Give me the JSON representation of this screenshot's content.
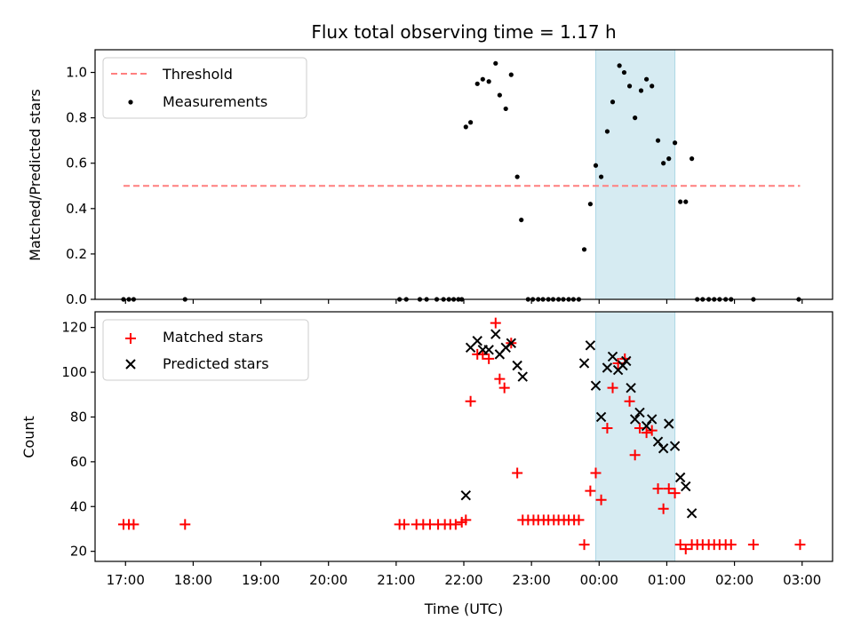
{
  "chart_data": [
    {
      "type": "scatter",
      "title": "Flux total observing time = 1.17 h",
      "xlabel": "",
      "ylabel": "Matched/Predicted stars",
      "ylim": [
        0,
        1.1
      ],
      "yticks": [
        0.0,
        0.2,
        0.4,
        0.6,
        0.8,
        1.0
      ],
      "ytick_labels": [
        "0.0",
        "0.2",
        "0.4",
        "0.6",
        "0.8",
        "1.0"
      ],
      "xlim_hours": [
        16.55,
        27.45
      ],
      "shaded_span_hours": [
        23.95,
        25.12
      ],
      "legend": [
        {
          "label": "Threshold",
          "style": "dashed-line",
          "color": "#ff7f7f"
        },
        {
          "label": "Measurements",
          "style": "dot",
          "color": "#000000"
        }
      ],
      "threshold": {
        "y": 0.5,
        "x": [
          16.97,
          26.97
        ]
      },
      "series": [
        {
          "name": "Measurements",
          "points": [
            [
              16.97,
              0
            ],
            [
              17.05,
              0
            ],
            [
              17.12,
              0
            ],
            [
              17.88,
              0
            ],
            [
              21.05,
              0
            ],
            [
              21.15,
              0
            ],
            [
              21.35,
              0
            ],
            [
              21.45,
              0
            ],
            [
              21.6,
              0
            ],
            [
              21.7,
              0
            ],
            [
              21.78,
              0
            ],
            [
              21.85,
              0
            ],
            [
              21.92,
              0
            ],
            [
              21.97,
              0
            ],
            [
              22.03,
              0.76
            ],
            [
              22.1,
              0.78
            ],
            [
              22.2,
              0.95
            ],
            [
              22.28,
              0.97
            ],
            [
              22.37,
              0.96
            ],
            [
              22.47,
              1.04
            ],
            [
              22.53,
              0.9
            ],
            [
              22.62,
              0.84
            ],
            [
              22.7,
              0.99
            ],
            [
              22.79,
              0.54
            ],
            [
              22.85,
              0.35
            ],
            [
              22.95,
              0
            ],
            [
              23.02,
              0
            ],
            [
              23.1,
              0
            ],
            [
              23.17,
              0
            ],
            [
              23.25,
              0
            ],
            [
              23.32,
              0
            ],
            [
              23.4,
              0
            ],
            [
              23.47,
              0
            ],
            [
              23.55,
              0
            ],
            [
              23.62,
              0
            ],
            [
              23.7,
              0
            ],
            [
              23.78,
              0.22
            ],
            [
              23.87,
              0.42
            ],
            [
              23.95,
              0.59
            ],
            [
              24.03,
              0.54
            ],
            [
              24.12,
              0.74
            ],
            [
              24.2,
              0.87
            ],
            [
              24.3,
              1.03
            ],
            [
              24.37,
              1.0
            ],
            [
              24.45,
              0.94
            ],
            [
              24.53,
              0.8
            ],
            [
              24.62,
              0.92
            ],
            [
              24.7,
              0.97
            ],
            [
              24.78,
              0.94
            ],
            [
              24.87,
              0.7
            ],
            [
              24.95,
              0.6
            ],
            [
              25.03,
              0.62
            ],
            [
              25.12,
              0.69
            ],
            [
              25.2,
              0.43
            ],
            [
              25.28,
              0.43
            ],
            [
              25.37,
              0.62
            ],
            [
              25.45,
              0
            ],
            [
              25.53,
              0
            ],
            [
              25.62,
              0
            ],
            [
              25.7,
              0
            ],
            [
              25.78,
              0
            ],
            [
              25.87,
              0
            ],
            [
              25.95,
              0
            ],
            [
              26.28,
              0
            ],
            [
              26.95,
              0
            ]
          ]
        }
      ]
    },
    {
      "type": "scatter",
      "title": "",
      "xlabel": "Time (UTC)",
      "ylabel": "Count",
      "ylim": [
        15.5,
        127
      ],
      "yticks": [
        20,
        40,
        60,
        80,
        100,
        120
      ],
      "ytick_labels": [
        "20",
        "40",
        "60",
        "80",
        "100",
        "120"
      ],
      "xlim_hours": [
        16.55,
        27.45
      ],
      "xticks_hours": [
        17,
        18,
        19,
        20,
        21,
        22,
        23,
        24,
        25,
        26,
        27
      ],
      "xtick_labels": [
        "17:00",
        "18:00",
        "19:00",
        "20:00",
        "21:00",
        "22:00",
        "23:00",
        "00:00",
        "01:00",
        "02:00",
        "03:00"
      ],
      "shaded_span_hours": [
        23.95,
        25.12
      ],
      "legend": [
        {
          "label": "Matched stars",
          "style": "plus",
          "color": "#ff0000"
        },
        {
          "label": "Predicted stars",
          "style": "x",
          "color": "#000000"
        }
      ],
      "series": [
        {
          "name": "Matched stars",
          "color": "#ff0000",
          "marker": "plus",
          "points": [
            [
              16.97,
              32
            ],
            [
              17.05,
              32
            ],
            [
              17.12,
              32
            ],
            [
              17.88,
              32
            ],
            [
              21.05,
              32
            ],
            [
              21.12,
              32
            ],
            [
              21.3,
              32
            ],
            [
              21.4,
              32
            ],
            [
              21.5,
              32
            ],
            [
              21.62,
              32
            ],
            [
              21.72,
              32
            ],
            [
              21.8,
              32
            ],
            [
              21.88,
              32
            ],
            [
              21.97,
              33
            ],
            [
              22.03,
              34
            ],
            [
              22.1,
              87
            ],
            [
              22.2,
              108
            ],
            [
              22.28,
              108
            ],
            [
              22.37,
              106
            ],
            [
              22.47,
              122
            ],
            [
              22.53,
              97
            ],
            [
              22.6,
              93
            ],
            [
              22.7,
              113
            ],
            [
              22.79,
              55
            ],
            [
              22.87,
              34
            ],
            [
              22.95,
              34
            ],
            [
              23.03,
              34
            ],
            [
              23.1,
              34
            ],
            [
              23.18,
              34
            ],
            [
              23.25,
              34
            ],
            [
              23.33,
              34
            ],
            [
              23.4,
              34
            ],
            [
              23.48,
              34
            ],
            [
              23.55,
              34
            ],
            [
              23.63,
              34
            ],
            [
              23.7,
              34
            ],
            [
              23.78,
              23
            ],
            [
              23.87,
              47
            ],
            [
              23.95,
              55
            ],
            [
              24.03,
              43
            ],
            [
              24.12,
              75
            ],
            [
              24.2,
              93
            ],
            [
              24.28,
              104
            ],
            [
              24.38,
              106
            ],
            [
              24.45,
              87
            ],
            [
              24.53,
              63
            ],
            [
              24.6,
              75
            ],
            [
              24.7,
              73
            ],
            [
              24.78,
              74
            ],
            [
              24.87,
              48
            ],
            [
              24.95,
              39
            ],
            [
              25.03,
              48
            ],
            [
              25.12,
              46
            ],
            [
              25.2,
              23
            ],
            [
              25.28,
              21
            ],
            [
              25.37,
              23
            ],
            [
              25.45,
              23
            ],
            [
              25.53,
              23
            ],
            [
              25.62,
              23
            ],
            [
              25.7,
              23
            ],
            [
              25.78,
              23
            ],
            [
              25.87,
              23
            ],
            [
              25.95,
              23
            ],
            [
              26.28,
              23
            ],
            [
              26.97,
              23
            ]
          ]
        },
        {
          "name": "Predicted stars",
          "color": "#000000",
          "marker": "x",
          "points": [
            [
              22.03,
              45
            ],
            [
              22.1,
              111
            ],
            [
              22.2,
              114
            ],
            [
              22.28,
              110
            ],
            [
              22.37,
              110
            ],
            [
              22.47,
              117
            ],
            [
              22.53,
              108
            ],
            [
              22.62,
              111
            ],
            [
              22.7,
              113
            ],
            [
              22.79,
              103
            ],
            [
              22.87,
              98
            ],
            [
              23.78,
              104
            ],
            [
              23.87,
              112
            ],
            [
              23.95,
              94
            ],
            [
              24.03,
              80
            ],
            [
              24.12,
              102
            ],
            [
              24.2,
              107
            ],
            [
              24.28,
              101
            ],
            [
              24.35,
              103
            ],
            [
              24.4,
              105
            ],
            [
              24.47,
              93
            ],
            [
              24.53,
              79
            ],
            [
              24.6,
              82
            ],
            [
              24.7,
              76
            ],
            [
              24.78,
              79
            ],
            [
              24.87,
              69
            ],
            [
              24.95,
              66
            ],
            [
              25.03,
              77
            ],
            [
              25.12,
              67
            ],
            [
              25.2,
              53
            ],
            [
              25.28,
              49
            ],
            [
              25.37,
              37
            ]
          ]
        }
      ]
    }
  ]
}
